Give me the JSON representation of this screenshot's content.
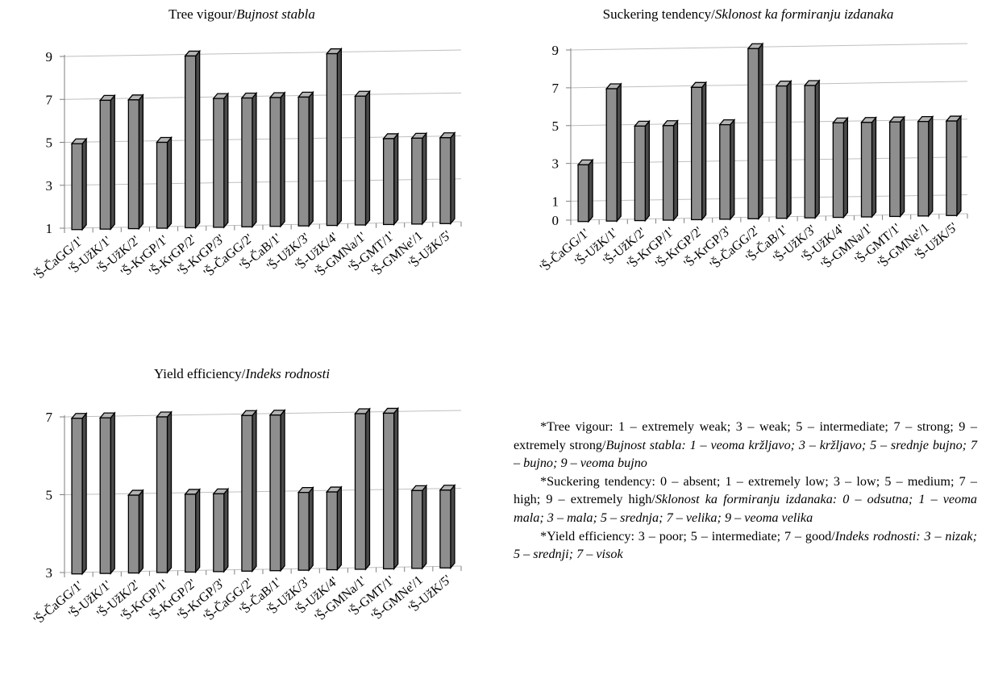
{
  "chart_data": [
    {
      "type": "bar",
      "title": "Tree vigour/",
      "title_italic": "Bujnost stabla",
      "categories": [
        "'Š-ČaGG/1'",
        "'Š-UžK/1'",
        "'Š-UžK/2'",
        "'Š-KrGP/1'",
        "'Š-KrGP/2'",
        "'Š-KrGP/3'",
        "'Š-ČaGG/2'",
        "'Š-ČaB/1'",
        "'Š-UžK/3'",
        "'Š-UžK/4'",
        "'Š-GMNa/1'",
        "'Š-GMT/1'",
        "'Š-GMNe'/1",
        "'Š-UžK/5'"
      ],
      "values": [
        5,
        7,
        7,
        5,
        9,
        7,
        7,
        7,
        7,
        9,
        7,
        5,
        5,
        5
      ],
      "ylim": [
        1,
        9
      ],
      "yticks": [
        1,
        3,
        5,
        7,
        9
      ],
      "grid": true,
      "xlabel": "",
      "ylabel": ""
    },
    {
      "type": "bar",
      "title": "Suckering tendency/",
      "title_italic": "Sklonost ka formiranju izdanaka",
      "categories": [
        "'Š-ČaGG/1'",
        "'Š-UžK/1'",
        "'Š-UžK/2'",
        "'Š-KrGP/1'",
        "'Š-KrGP/2'",
        "'Š-KrGP/3'",
        "'Š-ČaGG/2'",
        "'Š-ČaB/1'",
        "'Š-UžK/3'",
        "'Š-UžK/4'",
        "'Š-GMNa/1'",
        "'Š-GMT/1'",
        "'Š-GMNe'/1",
        "'Š-UžK/5'"
      ],
      "values": [
        3,
        7,
        5,
        5,
        7,
        5,
        9,
        7,
        7,
        5,
        5,
        5,
        5,
        5
      ],
      "ylim": [
        0,
        9
      ],
      "yticks": [
        0,
        1,
        3,
        5,
        7,
        9
      ],
      "grid": true,
      "xlabel": "",
      "ylabel": ""
    },
    {
      "type": "bar",
      "title": "Yield efficiency/",
      "title_italic": "Indeks rodnosti",
      "categories": [
        "'Š-ČaGG/1'",
        "'Š-UžK/1'",
        "'Š-UžK/2'",
        "'Š-KrGP/1'",
        "'Š-KrGP/2'",
        "'Š-KrGP/3'",
        "'Š-ČaGG/2'",
        "'Š-ČaB/1'",
        "'Š-UžK/3'",
        "'Š-UžK/4'",
        "'Š-GMNa/1'",
        "'Š-GMT/1'",
        "'Š-GMNe'/1",
        "'Š-UžK/5'"
      ],
      "values": [
        7,
        7,
        5,
        7,
        5,
        5,
        7,
        7,
        5,
        5,
        7,
        7,
        5,
        5
      ],
      "ylim": [
        3,
        7
      ],
      "yticks": [
        3,
        5,
        7
      ],
      "grid": true,
      "xlabel": "",
      "ylabel": ""
    }
  ],
  "legend": [
    {
      "label": "*Tree vigour: 1 – extremely weak; 3 – weak; 5 – intermediate; 7 – strong; 9 – extremely strong/",
      "label_italic": "Bujnost stabla: 1 – veoma kržljavo; 3 – kržljavo; 5 – srednje bujno; 7 – bujno; 9 – veoma bujno"
    },
    {
      "label": "*Suckering tendency: 0 – absent; 1 – extremely low; 3 – low; 5 – medium; 7 – high; 9 – extremely high/",
      "label_italic": "Sklonost ka formiranju izdanaka: 0 – odsutna; 1 – veoma mala; 3 – mala; 5 – srednja; 7 – velika; 9 – veoma velika"
    },
    {
      "label": "*Yield efficiency: 3 – poor; 5 – intermediate; 7 – good/",
      "label_italic": "Indeks rodnosti: 3 – nizak; 5 – srednji; 7 – visok"
    }
  ],
  "colors": {
    "bar_front": "#8e8e8e",
    "bar_side": "#4a4a4a",
    "bar_top": "#b4b4b4",
    "grid": "#bfbfbf",
    "axis": "#7f7f7f"
  }
}
